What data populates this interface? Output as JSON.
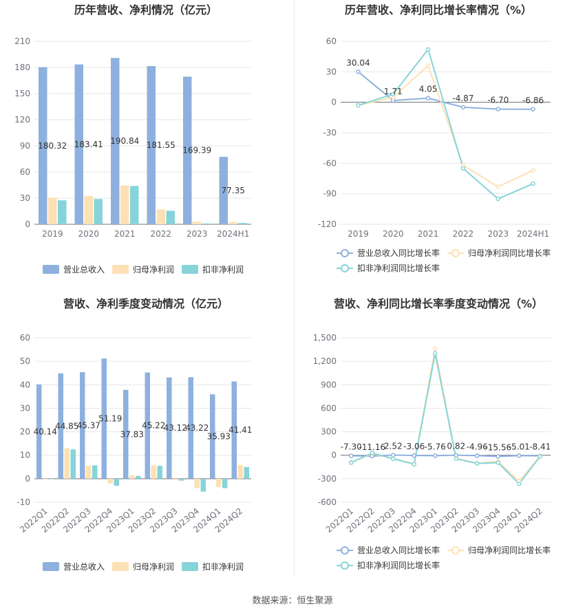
{
  "source": "数据来源：恒生聚源",
  "colors": {
    "revenue": "#8eb0de",
    "net_profit": "#fde1b4",
    "deducted_profit": "#86d4d9",
    "grid": "#e6e6e6",
    "axis": "#6e7079"
  },
  "chart_data": [
    {
      "type": "bar",
      "title": "历年营收、净利情况（亿元）",
      "categories": [
        "2019",
        "2020",
        "2021",
        "2022",
        "2023",
        "2024H1"
      ],
      "series": [
        {
          "name": "营业总收入",
          "values": [
            180.32,
            183.41,
            190.84,
            181.55,
            169.39,
            77.35
          ]
        },
        {
          "name": "归母净利润",
          "values": [
            30.5,
            32.5,
            44.5,
            17.0,
            3.0,
            2.5
          ]
        },
        {
          "name": "扣非净利润",
          "values": [
            27.5,
            29.0,
            44.0,
            15.5,
            1.0,
            1.5
          ]
        }
      ],
      "data_labels": [
        "180.32",
        "183.41",
        "190.84",
        "181.55",
        "169.39",
        "77.35"
      ],
      "yticks": [
        "0",
        "30",
        "60",
        "90",
        "120",
        "150",
        "180",
        "210"
      ],
      "ylim": [
        0,
        210
      ],
      "legend": [
        "营业总收入",
        "归母净利润",
        "扣非净利润"
      ],
      "legend_position": "bottom"
    },
    {
      "type": "line",
      "title": "历年营收、净利同比增长率情况（%）",
      "categories": [
        "2019",
        "2020",
        "2021",
        "2022",
        "2023",
        "2024H1"
      ],
      "series": [
        {
          "name": "营业总收入同比增长率",
          "values": [
            30.04,
            1.71,
            4.05,
            -4.87,
            -6.7,
            -6.86
          ]
        },
        {
          "name": "归母净利润同比增长率",
          "values": [
            -3,
            5,
            36,
            -62,
            -83,
            -67
          ]
        },
        {
          "name": "扣非净利润同比增长率",
          "values": [
            -3,
            8,
            52,
            -65,
            -95,
            -80
          ]
        }
      ],
      "data_labels": [
        "30.04",
        "1.71",
        "4.05",
        "-4.87",
        "-6.70",
        "-6.86"
      ],
      "yticks": [
        "-120",
        "-90",
        "-60",
        "-30",
        "0",
        "30",
        "60"
      ],
      "ylim": [
        -120,
        60
      ],
      "legend": [
        "营业总收入同比增长率",
        "归母净利润同比增长率",
        "扣非净利润同比增长率"
      ],
      "legend_position": "bottom"
    },
    {
      "type": "bar",
      "title": "营收、净利季度变动情况（亿元）",
      "categories": [
        "2022Q1",
        "2022Q2",
        "2022Q3",
        "2022Q4",
        "2023Q1",
        "2023Q2",
        "2023Q3",
        "2023Q4",
        "2024Q1",
        "2024Q2"
      ],
      "series": [
        {
          "name": "营业总收入",
          "values": [
            40.14,
            44.85,
            45.37,
            51.19,
            37.83,
            45.22,
            43.12,
            43.22,
            35.93,
            41.41
          ]
        },
        {
          "name": "归母净利润",
          "values": [
            0,
            13.0,
            5.5,
            -2.0,
            1.5,
            5.7,
            -0.5,
            -4.0,
            -3.5,
            5.8
          ]
        },
        {
          "name": "扣非净利润",
          "values": [
            0,
            12.5,
            5.7,
            -3.0,
            1.2,
            5.5,
            -0.8,
            -5.5,
            -4.0,
            5.0
          ]
        }
      ],
      "data_labels": [
        "40.14",
        "44.85",
        "45.37",
        "51.19",
        "37.83",
        "45.22",
        "43.12",
        "43.22",
        "35.93",
        "41.41"
      ],
      "yticks": [
        "-10",
        "0",
        "10",
        "20",
        "30",
        "40",
        "50",
        "60"
      ],
      "ylim": [
        -10,
        60
      ],
      "legend": [
        "营业总收入",
        "归母净利润",
        "扣非净利润"
      ],
      "legend_position": "bottom"
    },
    {
      "type": "line",
      "title": "营收、净利同比增长率季度变动情况（%）",
      "categories": [
        "2022Q1",
        "2022Q2",
        "2022Q3",
        "2022Q4",
        "2023Q1",
        "2023Q2",
        "2023Q3",
        "2023Q4",
        "2024Q1",
        "2024Q2"
      ],
      "series": [
        {
          "name": "营业总收入同比增长率",
          "values": [
            -7.3,
            -11.16,
            2.52,
            -3.06,
            -5.76,
            0.82,
            -4.96,
            -15.56,
            -5.01,
            -8.41
          ]
        },
        {
          "name": "归母净利润同比增长率",
          "values": [
            -90,
            20,
            -40,
            -110,
            1360,
            -40,
            -100,
            -80,
            -330,
            -10
          ]
        },
        {
          "name": "扣非净利润同比增长率",
          "values": [
            -95,
            30,
            -45,
            -115,
            1300,
            -45,
            -105,
            -95,
            -365,
            -15
          ]
        }
      ],
      "data_labels": [
        "-7.30",
        "-11.16",
        "2.52",
        "-3.06",
        "-5.76",
        "0.82",
        "-4.96",
        "-15.56",
        "-5.01",
        "-8.41"
      ],
      "yticks": [
        "-600",
        "-300",
        "0",
        "300",
        "600",
        "900",
        "1,200",
        "1,500"
      ],
      "ylim": [
        -600,
        1500
      ],
      "legend": [
        "营业总收入同比增长率",
        "归母净利润同比增长率",
        "扣非净利润同比增长率"
      ],
      "legend_position": "bottom"
    }
  ]
}
